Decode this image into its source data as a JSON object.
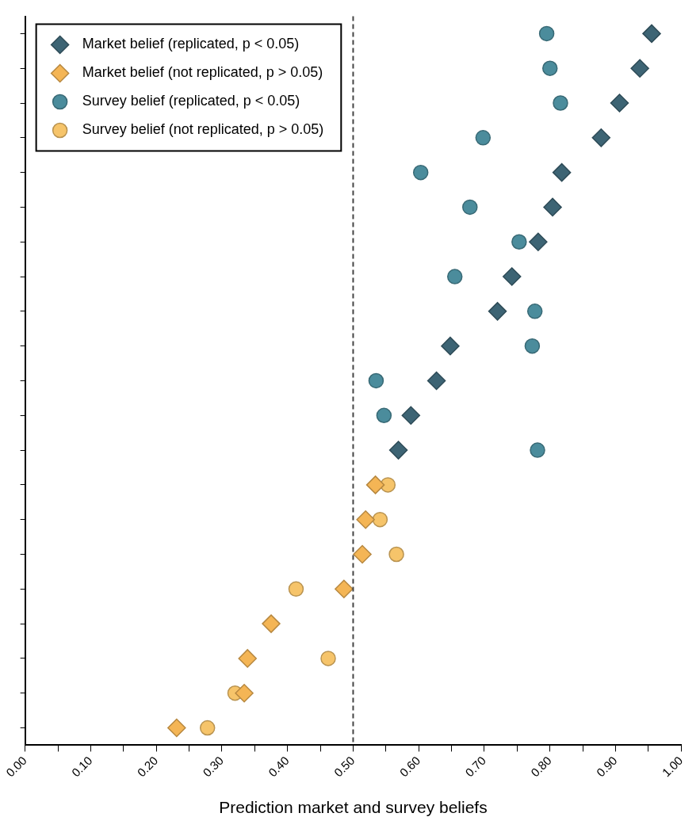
{
  "chart_data": {
    "type": "scatter",
    "orientation": "horizontal",
    "xlabel": "Prediction market and survey beliefs",
    "categories": [
      null,
      null,
      null,
      null,
      null,
      null,
      null,
      null,
      null,
      null,
      null,
      null,
      null,
      null,
      null,
      null,
      null,
      null,
      null,
      null,
      null
    ],
    "series": [
      {
        "name": "Market belief (replicated, p < 0.05)",
        "color": "#3d6474",
        "marker": "diamond",
        "values": [
          0.955,
          0.937,
          0.906,
          0.878,
          0.818,
          0.804,
          0.782,
          0.742,
          0.72,
          0.648,
          0.627,
          0.588,
          0.569,
          null,
          null,
          null,
          null,
          null,
          null,
          null,
          null
        ]
      },
      {
        "name": "Market belief (not replicated, p > 0.05)",
        "color": "#f4b555",
        "marker": "diamond",
        "values": [
          null,
          null,
          null,
          null,
          null,
          null,
          null,
          null,
          null,
          null,
          null,
          null,
          null,
          0.534,
          0.519,
          0.514,
          0.486,
          0.375,
          0.339,
          0.334,
          0.231
        ]
      },
      {
        "name": "Survey belief (replicated, p < 0.05)",
        "color": "#4b8c9c",
        "marker": "circle",
        "values": [
          0.795,
          0.8,
          0.816,
          0.698,
          0.603,
          0.678,
          0.753,
          0.655,
          0.777,
          0.773,
          0.535,
          0.547,
          0.781,
          null,
          null,
          null,
          null,
          null,
          null,
          null,
          null
        ]
      },
      {
        "name": "Survey belief (not replicated, p > 0.05)",
        "color": "#f6c46a",
        "marker": "circle",
        "values": [
          null,
          null,
          null,
          null,
          null,
          null,
          null,
          null,
          null,
          null,
          null,
          null,
          null,
          0.553,
          0.541,
          0.566,
          0.413,
          null,
          0.462,
          0.32,
          0.278
        ]
      }
    ],
    "xlim": [
      0,
      1
    ],
    "xticks": [
      {
        "value": 0,
        "label": "0.00"
      },
      {
        "value": 0.05,
        "label": null
      },
      {
        "value": 0.1,
        "label": "0.10"
      },
      {
        "value": 0.15,
        "label": null
      },
      {
        "value": 0.2,
        "label": "0.20"
      },
      {
        "value": 0.25,
        "label": null
      },
      {
        "value": 0.3,
        "label": "0.30"
      },
      {
        "value": 0.35,
        "label": null
      },
      {
        "value": 0.4,
        "label": "0.40"
      },
      {
        "value": 0.45,
        "label": null
      },
      {
        "value": 0.5,
        "label": "0.50"
      },
      {
        "value": 0.55,
        "label": null
      },
      {
        "value": 0.6,
        "label": "0.60"
      },
      {
        "value": 0.65,
        "label": null
      },
      {
        "value": 0.7,
        "label": "0.70"
      },
      {
        "value": 0.75,
        "label": null
      },
      {
        "value": 0.8,
        "label": "0.80"
      },
      {
        "value": 0.85,
        "label": null
      },
      {
        "value": 0.9,
        "label": "0.90"
      },
      {
        "value": 0.95,
        "label": null
      },
      {
        "value": 1,
        "label": "1.00"
      }
    ],
    "ref_lines": [
      {
        "axis": "x",
        "value": 0.5,
        "line_style": "dashed",
        "color": "#444444"
      }
    ],
    "legend": "top left",
    "grid": false
  }
}
